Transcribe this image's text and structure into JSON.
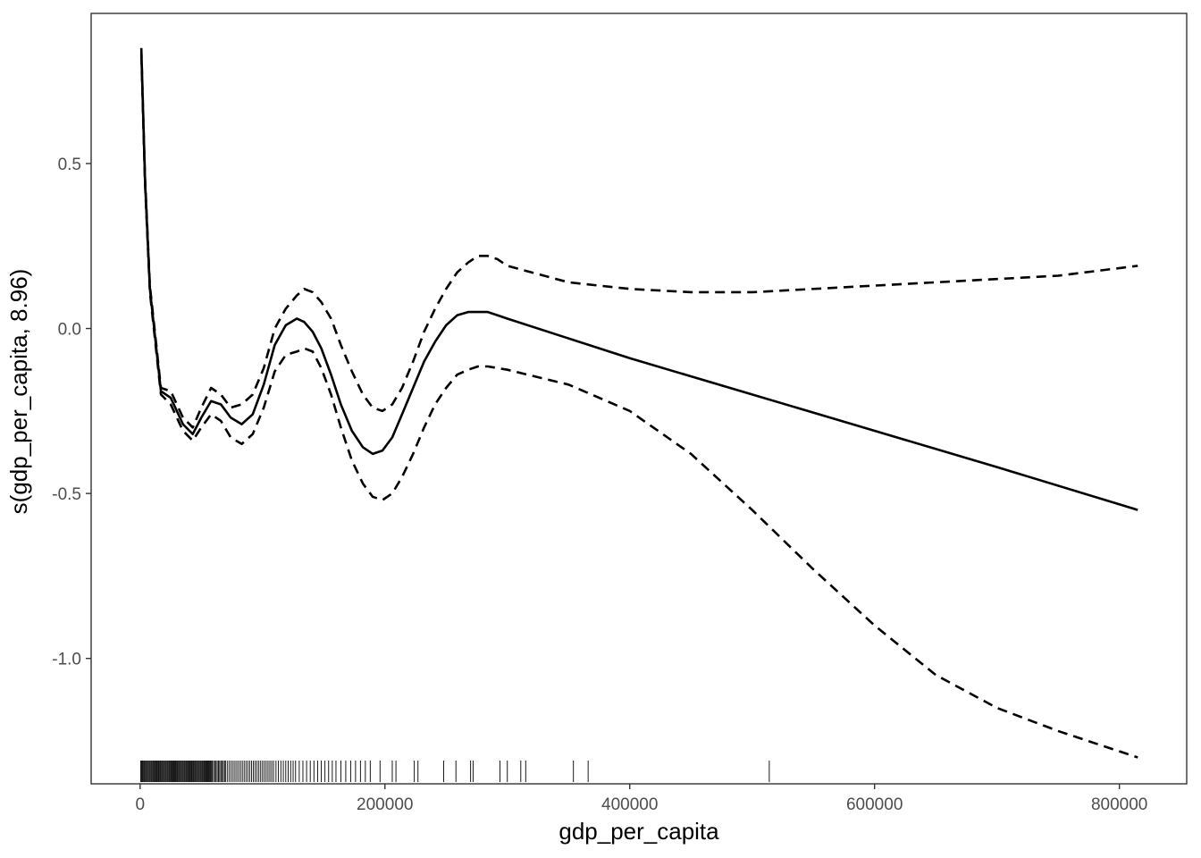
{
  "chart_data": {
    "type": "line",
    "title": "",
    "xlabel": "gdp_per_capita",
    "ylabel": "s(gdp_per_capita, 8.96)",
    "xlim": [
      -40000,
      855000
    ],
    "ylim": [
      -1.38,
      0.955
    ],
    "xticks": [
      0,
      200000,
      400000,
      600000,
      800000
    ],
    "xtick_labels": [
      "0",
      "200000",
      "400000",
      "600000",
      "800000"
    ],
    "yticks": [
      -1.0,
      -0.5,
      0.0,
      0.5
    ],
    "ytick_labels": [
      "-1.0",
      "-0.5",
      "0.0",
      "0.5"
    ],
    "grid": false,
    "legend": "none",
    "series": [
      {
        "role": "estimate",
        "style": "solid",
        "x": [
          1000,
          4000,
          8000,
          17000,
          25000,
          35000,
          43000,
          50000,
          58000,
          66000,
          74000,
          83000,
          92000,
          101000,
          110000,
          119000,
          128000,
          134000,
          141000,
          148000,
          156000,
          164000,
          173000,
          182000,
          190000,
          198000,
          206000,
          214000,
          223000,
          232000,
          241000,
          250000,
          259000,
          268000,
          276000,
          284000,
          292000,
          300000,
          400000,
          500000,
          600000,
          700000,
          815000
        ],
        "y": [
          0.84,
          0.45,
          0.12,
          -0.19,
          -0.21,
          -0.29,
          -0.32,
          -0.27,
          -0.22,
          -0.23,
          -0.27,
          -0.29,
          -0.26,
          -0.17,
          -0.05,
          0.01,
          0.03,
          0.02,
          -0.01,
          -0.06,
          -0.14,
          -0.23,
          -0.31,
          -0.36,
          -0.38,
          -0.37,
          -0.33,
          -0.26,
          -0.18,
          -0.1,
          -0.04,
          0.01,
          0.04,
          0.05,
          0.05,
          0.05,
          0.04,
          0.03,
          -0.09,
          -0.2,
          -0.31,
          -0.42,
          -0.55
        ]
      },
      {
        "role": "upper",
        "style": "dashed",
        "x": [
          1000,
          4000,
          8000,
          17000,
          25000,
          35000,
          43000,
          50000,
          58000,
          66000,
          74000,
          83000,
          92000,
          101000,
          110000,
          119000,
          128000,
          134000,
          141000,
          148000,
          156000,
          164000,
          173000,
          182000,
          190000,
          198000,
          206000,
          214000,
          223000,
          232000,
          241000,
          250000,
          259000,
          268000,
          276000,
          284000,
          292000,
          300000,
          350000,
          400000,
          450000,
          500000,
          550000,
          600000,
          650000,
          700000,
          750000,
          815000
        ],
        "y": [
          0.85,
          0.46,
          0.13,
          -0.18,
          -0.19,
          -0.27,
          -0.3,
          -0.24,
          -0.18,
          -0.2,
          -0.24,
          -0.23,
          -0.2,
          -0.12,
          0.0,
          0.06,
          0.1,
          0.12,
          0.11,
          0.08,
          0.03,
          -0.05,
          -0.13,
          -0.2,
          -0.24,
          -0.25,
          -0.23,
          -0.18,
          -0.1,
          -0.01,
          0.06,
          0.12,
          0.17,
          0.2,
          0.22,
          0.22,
          0.21,
          0.19,
          0.14,
          0.12,
          0.11,
          0.11,
          0.12,
          0.13,
          0.14,
          0.15,
          0.16,
          0.19
        ]
      },
      {
        "role": "lower",
        "style": "dashed",
        "x": [
          1000,
          4000,
          8000,
          17000,
          25000,
          35000,
          43000,
          50000,
          58000,
          66000,
          74000,
          83000,
          92000,
          101000,
          110000,
          119000,
          128000,
          134000,
          141000,
          148000,
          156000,
          164000,
          173000,
          182000,
          190000,
          198000,
          206000,
          214000,
          223000,
          232000,
          241000,
          250000,
          259000,
          268000,
          276000,
          284000,
          292000,
          300000,
          350000,
          400000,
          450000,
          500000,
          550000,
          600000,
          650000,
          700000,
          750000,
          815000
        ],
        "y": [
          0.83,
          0.44,
          0.11,
          -0.2,
          -0.23,
          -0.31,
          -0.34,
          -0.3,
          -0.26,
          -0.28,
          -0.33,
          -0.35,
          -0.32,
          -0.24,
          -0.13,
          -0.08,
          -0.07,
          -0.06,
          -0.07,
          -0.12,
          -0.2,
          -0.3,
          -0.4,
          -0.47,
          -0.51,
          -0.52,
          -0.5,
          -0.45,
          -0.38,
          -0.3,
          -0.23,
          -0.18,
          -0.14,
          -0.125,
          -0.115,
          -0.115,
          -0.12,
          -0.125,
          -0.17,
          -0.25,
          -0.38,
          -0.55,
          -0.73,
          -0.9,
          -1.05,
          -1.15,
          -1.22,
          -1.3
        ]
      }
    ],
    "rug_x": [
      500,
      1200,
      2000,
      2800,
      3500,
      4300,
      5000,
      5800,
      6500,
      7300,
      8000,
      8800,
      9500,
      10300,
      11000,
      11800,
      12500,
      13300,
      14000,
      14800,
      15500,
      16300,
      17000,
      17800,
      18500,
      19300,
      20000,
      20800,
      21500,
      22300,
      23000,
      23800,
      24500,
      25300,
      26000,
      26800,
      27500,
      28300,
      29000,
      29800,
      30500,
      31300,
      32000,
      32800,
      33500,
      34300,
      35000,
      35800,
      36500,
      37300,
      38000,
      38800,
      39500,
      40300,
      41000,
      41800,
      42500,
      43300,
      44000,
      44800,
      45500,
      46300,
      47000,
      47800,
      48500,
      49300,
      50000,
      50800,
      51500,
      52300,
      53000,
      53800,
      54500,
      55300,
      56000,
      56800,
      57500,
      58300,
      59000,
      60000,
      61000,
      62000,
      63000,
      64000,
      65000,
      66000,
      67000,
      68000,
      69000,
      70000,
      71500,
      73000,
      74500,
      76000,
      77500,
      79000,
      80500,
      82000,
      83500,
      85000,
      86500,
      88000,
      89500,
      91000,
      92500,
      94000,
      95500,
      97000,
      98500,
      100000,
      101500,
      103000,
      104500,
      106000,
      107500,
      109000,
      111000,
      113000,
      115000,
      117000,
      119000,
      121000,
      123000,
      125000,
      127000,
      130000,
      133000,
      136000,
      139000,
      142000,
      145000,
      148000,
      151000,
      154000,
      157000,
      160000,
      164000,
      168000,
      172000,
      176000,
      180000,
      184000,
      188000,
      196000,
      206000,
      209000,
      224000,
      227000,
      248000,
      258000,
      270000,
      272000,
      294000,
      300000,
      311000,
      315000,
      354000,
      366000,
      514000
    ]
  }
}
